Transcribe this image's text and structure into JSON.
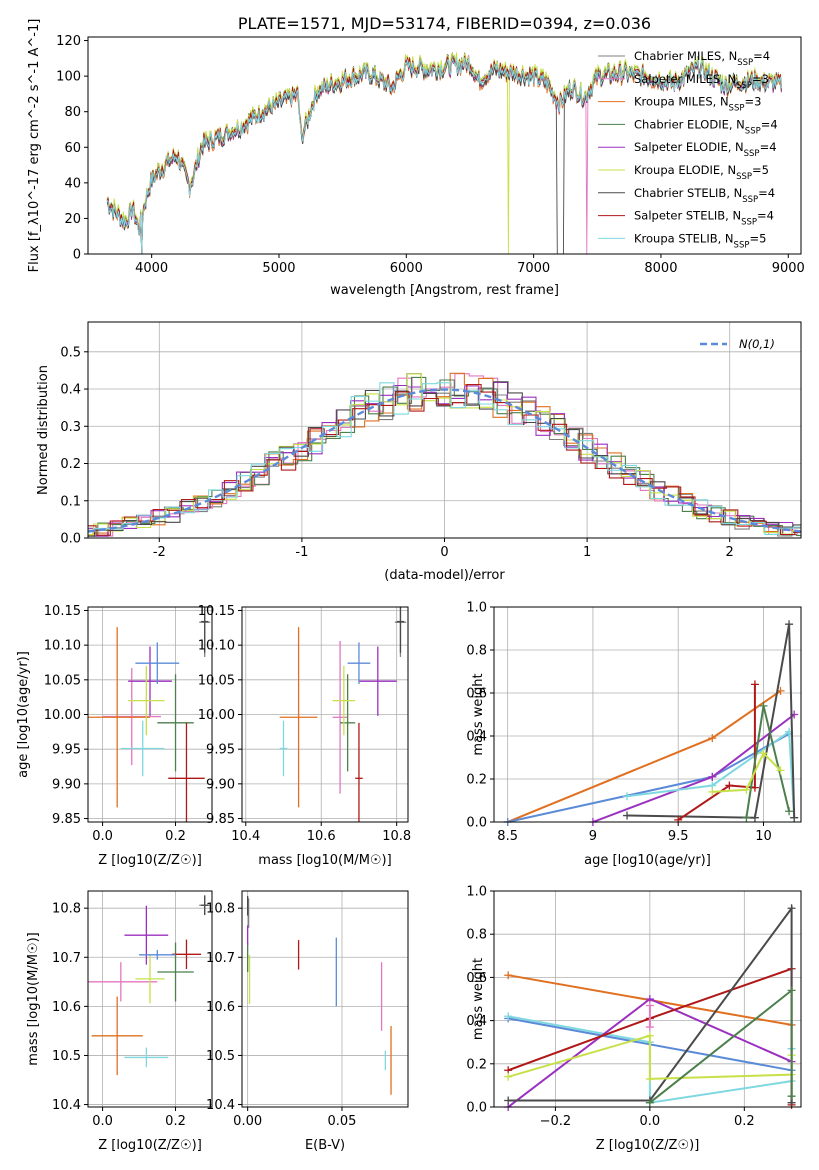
{
  "colors": [
    "#7f7f7f",
    "#e377c2",
    "#e07020",
    "#4c7f4c",
    "#9b30c0",
    "#c8e048",
    "#4a4a4a",
    "#b01818",
    "#7fd8e0"
  ],
  "legend_names": [
    "Chabrier MILES, N_SSP=4",
    "Salpeter MILES, N_SSP=3",
    "Kroupa MILES, N_SSP=3",
    "Chabrier ELODIE, N_SSP=4",
    "Salpeter ELODIE, N_SSP=4",
    "Kroupa ELODIE, N_SSP=5",
    "Chabrier STELIB, N_SSP=4",
    "Salpeter STELIB, N_SSP=4",
    "Kroupa STELIB, N_SSP=5"
  ],
  "chart_data": [
    {
      "type": "line",
      "title": "PLATE=1571, MJD=53174, FIBERID=0394, z=0.036",
      "xlabel": "wavelength [Angstrom, rest frame]",
      "ylabel": "Flux [f_λ10^-17 erg cm^-2 s^-1 A^-1]",
      "xlim": [
        3500,
        9100
      ],
      "ylim": [
        0,
        122
      ],
      "xticks": [
        4000,
        5000,
        6000,
        7000,
        8000,
        9000
      ],
      "yticks": [
        0,
        20,
        40,
        60,
        80,
        100,
        120
      ],
      "spectrum_anchor_points": {
        "x": [
          3650,
          3700,
          3800,
          3850,
          3900,
          3950,
          4000,
          4100,
          4200,
          4300,
          4400,
          4500,
          4700,
          4860,
          5000,
          5150,
          5175,
          5300,
          5500,
          5700,
          5890,
          6000,
          6200,
          6500,
          6563,
          6700,
          7000,
          7100,
          7200,
          7300,
          7400,
          7500,
          7700,
          7900,
          8100,
          8300,
          8500,
          8700,
          8900
        ],
        "y": [
          30,
          25,
          18,
          26,
          14,
          30,
          42,
          50,
          56,
          38,
          62,
          65,
          72,
          80,
          85,
          90,
          65,
          92,
          98,
          102,
          94,
          106,
          104,
          108,
          98,
          104,
          100,
          97,
          85,
          94,
          88,
          100,
          102,
          100,
          96,
          105,
          95,
          98,
          96
        ]
      },
      "dropouts": [
        {
          "x": 3920,
          "series": [
            0,
            1,
            2,
            3,
            4,
            5,
            6,
            7,
            8
          ]
        },
        {
          "x": 6800,
          "series": [
            5
          ]
        },
        {
          "x": 7220,
          "series": [
            6
          ]
        },
        {
          "x": 7420,
          "series": [
            1
          ]
        }
      ],
      "series_offsets": [
        0,
        1,
        -2,
        1.5,
        -1,
        2,
        -1.5,
        0.5,
        -0.5
      ]
    },
    {
      "type": "histogram",
      "xlabel": "(data-model)/error",
      "ylabel": "Normed distribution",
      "xlim": [
        -2.5,
        2.5
      ],
      "ylim": [
        0,
        0.58
      ],
      "xticks": [
        -2,
        -1,
        0,
        1,
        2
      ],
      "yticks": [
        0.0,
        0.1,
        0.2,
        0.3,
        0.4,
        0.5
      ],
      "bin_width": 0.1,
      "reference": {
        "name": "N(0,1)",
        "color": "#5b8bd8",
        "style": "dashed"
      }
    },
    {
      "type": "scatter",
      "xlabel": "Z [log10(Z/Z☉)]",
      "ylabel": "age  [log10(age/yr)]",
      "xlim": [
        -0.04,
        0.3
      ],
      "ylim": [
        9.845,
        10.155
      ],
      "xticks": [
        0.0,
        0.2
      ],
      "xticklabels": [
        "0.0",
        "0.2"
      ],
      "yticks": [
        9.85,
        9.9,
        9.95,
        10.0,
        10.05,
        10.1,
        10.15
      ],
      "points": [
        {
          "series": 0,
          "x": 0.28,
          "y": 10.133,
          "xerr": 0.015,
          "yerr": 0.05
        },
        {
          "series": 1,
          "x": 0.08,
          "y": 9.997,
          "xerr": 0.08,
          "yerr": 0.07
        },
        {
          "series": 2,
          "x": 0.04,
          "y": 9.996,
          "xerr": 0.09,
          "yerr": 0.13
        },
        {
          "series": 3,
          "x": 0.2,
          "y": 9.988,
          "xerr": 0.05,
          "yerr": 0.07
        },
        {
          "series": 4,
          "x": 0.13,
          "y": 10.048,
          "xerr": 0.06,
          "yerr": 0.05
        },
        {
          "series": 5,
          "x": 0.12,
          "y": 10.02,
          "xerr": 0.05,
          "yerr": 0.05
        },
        {
          "series": 6,
          "x": 0.28,
          "y": 10.134,
          "xerr": 0.01,
          "yerr": 0.045
        },
        {
          "series": 7,
          "x": 0.23,
          "y": 9.908,
          "xerr": 0.05,
          "yerr": 0.08
        },
        {
          "series": 8,
          "x": 0.11,
          "y": 9.951,
          "xerr": 0.06,
          "yerr": 0.04
        },
        {
          "series": 9,
          "x": 0.15,
          "y": 10.074,
          "xerr": 0.06,
          "yerr": 0.03
        }
      ]
    },
    {
      "type": "scatter",
      "xlabel": "mass [log10(M/M☉)]",
      "ylabel": "",
      "xlim": [
        10.39,
        10.83
      ],
      "ylim": [
        9.845,
        10.155
      ],
      "xticks": [
        10.4,
        10.6,
        10.8
      ],
      "yticks": [
        9.85,
        9.9,
        9.95,
        10.0,
        10.05,
        10.1,
        10.15
      ],
      "points": [
        {
          "series": 0,
          "x": 10.81,
          "y": 10.133,
          "xerr": 0.015,
          "yerr": 0.05
        },
        {
          "series": 1,
          "x": 10.65,
          "y": 9.996,
          "xerr": 0.02,
          "yerr": 0.11
        },
        {
          "series": 2,
          "x": 10.54,
          "y": 9.996,
          "xerr": 0.05,
          "yerr": 0.13
        },
        {
          "series": 3,
          "x": 10.67,
          "y": 9.988,
          "xerr": 0.02,
          "yerr": 0.07
        },
        {
          "series": 4,
          "x": 10.75,
          "y": 10.048,
          "xerr": 0.05,
          "yerr": 0.05
        },
        {
          "series": 5,
          "x": 10.66,
          "y": 10.02,
          "xerr": 0.03,
          "yerr": 0.05
        },
        {
          "series": 6,
          "x": 10.81,
          "y": 10.134,
          "xerr": 0.01,
          "yerr": 0.045
        },
        {
          "series": 7,
          "x": 10.7,
          "y": 9.908,
          "xerr": 0.01,
          "yerr": 0.08
        },
        {
          "series": 8,
          "x": 10.5,
          "y": 9.951,
          "xerr": 0.01,
          "yerr": 0.04
        },
        {
          "series": 9,
          "x": 10.7,
          "y": 10.074,
          "xerr": 0.03,
          "yerr": 0.03
        }
      ]
    },
    {
      "type": "line",
      "xlabel": "age  [log10(age/yr)]",
      "ylabel": "mass weight",
      "xlim": [
        8.42,
        10.22
      ],
      "ylim": [
        0,
        1
      ],
      "xticks": [
        8.5,
        9.0,
        9.5,
        10.0
      ],
      "yticks": [
        0.0,
        0.2,
        0.4,
        0.6,
        0.8,
        1.0
      ],
      "series": [
        {
          "series": 2,
          "x": [
            8.5,
            9.7,
            10.1
          ],
          "y": [
            0.0,
            0.39,
            0.61
          ]
        },
        {
          "series": 9,
          "x": [
            8.5,
            9.7,
            10.15
          ],
          "y": [
            0.0,
            0.21,
            0.41
          ]
        },
        {
          "series": 4,
          "x": [
            9.0,
            9.7,
            10.18
          ],
          "y": [
            0.0,
            0.21,
            0.5
          ]
        },
        {
          "series": 8,
          "x": [
            9.2,
            9.7,
            10.15,
            10.18
          ],
          "y": [
            0.12,
            0.17,
            0.42,
            0.02
          ]
        },
        {
          "series": 6,
          "x": [
            9.2,
            9.95,
            10.15,
            10.18
          ],
          "y": [
            0.03,
            0.02,
            0.92,
            0.02
          ]
        },
        {
          "series": 7,
          "x": [
            9.5,
            9.8,
            9.95,
            9.95
          ],
          "y": [
            0.01,
            0.17,
            0.16,
            0.64
          ]
        },
        {
          "series": 3,
          "x": [
            9.9,
            10.0,
            10.15
          ],
          "y": [
            0.02,
            0.54,
            0.05
          ]
        },
        {
          "series": 5,
          "x": [
            9.7,
            9.9,
            10.0,
            10.1
          ],
          "y": [
            0.14,
            0.15,
            0.32,
            0.24
          ]
        }
      ]
    },
    {
      "type": "scatter",
      "xlabel": "Z [log10(Z/Z☉)]",
      "ylabel": "mass [log10(M/M☉)]",
      "xlim": [
        -0.04,
        0.3
      ],
      "ylim": [
        10.395,
        10.835
      ],
      "xticks": [
        0.0,
        0.2
      ],
      "xticklabels": [
        "0.0",
        "0.2"
      ],
      "yticks": [
        10.4,
        10.5,
        10.6,
        10.7,
        10.8
      ],
      "points": [
        {
          "series": 0,
          "x": 0.28,
          "y": 10.806,
          "xerr": 0.015,
          "yerr": 0.02
        },
        {
          "series": 1,
          "x": 0.05,
          "y": 10.65,
          "xerr": 0.1,
          "yerr": 0.04
        },
        {
          "series": 2,
          "x": 0.04,
          "y": 10.54,
          "xerr": 0.07,
          "yerr": 0.08
        },
        {
          "series": 3,
          "x": 0.2,
          "y": 10.67,
          "xerr": 0.05,
          "yerr": 0.06
        },
        {
          "series": 4,
          "x": 0.12,
          "y": 10.745,
          "xerr": 0.06,
          "yerr": 0.06
        },
        {
          "series": 5,
          "x": 0.13,
          "y": 10.656,
          "xerr": 0.04,
          "yerr": 0.05
        },
        {
          "series": 6,
          "x": 0.28,
          "y": 10.806,
          "xerr": 0.01,
          "yerr": 0.02
        },
        {
          "series": 7,
          "x": 0.23,
          "y": 10.706,
          "xerr": 0.04,
          "yerr": 0.03
        },
        {
          "series": 8,
          "x": 0.12,
          "y": 10.496,
          "xerr": 0.06,
          "yerr": 0.02
        },
        {
          "series": 9,
          "x": 0.15,
          "y": 10.705,
          "xerr": 0.05,
          "yerr": 0.01
        }
      ]
    },
    {
      "type": "scatter",
      "xlabel": "E(B-V)",
      "ylabel": "",
      "xlim": [
        -0.003,
        0.085
      ],
      "ylim": [
        10.395,
        10.835
      ],
      "xticks": [
        0.0,
        0.05
      ],
      "xticklabels": [
        "0.00",
        "0.05"
      ],
      "yticks": [
        10.4,
        10.5,
        10.6,
        10.7,
        10.8
      ],
      "points": [
        {
          "series": 0,
          "x": 0.0005,
          "y": 10.79,
          "xerr": 0,
          "yerr": 0.03
        },
        {
          "series": 1,
          "x": 0.071,
          "y": 10.62,
          "xerr": 0,
          "yerr": 0.07
        },
        {
          "series": 2,
          "x": 0.076,
          "y": 10.49,
          "xerr": 0,
          "yerr": 0.07
        },
        {
          "series": 3,
          "x": 0.0,
          "y": 10.7,
          "xerr": 0,
          "yerr": 0.03
        },
        {
          "series": 4,
          "x": 0.0,
          "y": 10.745,
          "xerr": 0,
          "yerr": 0.02
        },
        {
          "series": 5,
          "x": 0.001,
          "y": 10.655,
          "xerr": 0,
          "yerr": 0.05
        },
        {
          "series": 6,
          "x": 0.0,
          "y": 10.805,
          "xerr": 0,
          "yerr": 0.02
        },
        {
          "series": 7,
          "x": 0.027,
          "y": 10.705,
          "xerr": 0,
          "yerr": 0.03
        },
        {
          "series": 8,
          "x": 0.073,
          "y": 10.49,
          "xerr": 0,
          "yerr": 0.02
        },
        {
          "series": 9,
          "x": 0.047,
          "y": 10.67,
          "xerr": 0,
          "yerr": 0.07
        }
      ]
    },
    {
      "type": "line",
      "xlabel": "Z [log10(Z/Z☉)]",
      "ylabel": "mass weight",
      "xlim": [
        -0.33,
        0.32
      ],
      "ylim": [
        0,
        1
      ],
      "xticks": [
        -0.2,
        0.0,
        0.2
      ],
      "xticklabels": [
        "−0.2",
        "0.0",
        "0.2"
      ],
      "yticks": [
        0.0,
        0.2,
        0.4,
        0.6,
        0.8,
        1.0
      ],
      "series": [
        {
          "series": 2,
          "x": [
            -0.3,
            0.3
          ],
          "y": [
            0.61,
            0.38
          ]
        },
        {
          "series": 9,
          "x": [
            -0.3,
            0.3
          ],
          "y": [
            0.41,
            0.17
          ]
        },
        {
          "series": 8,
          "x": [
            -0.3,
            0.0,
            0.0,
            0.3,
            0.3
          ],
          "y": [
            0.42,
            0.3,
            0.02,
            0.12,
            0.27
          ]
        },
        {
          "series": 4,
          "x": [
            -0.3,
            0.0,
            0.3
          ],
          "y": [
            0.0,
            0.5,
            0.21
          ]
        },
        {
          "series": 7,
          "x": [
            -0.3,
            0.0,
            0.3,
            0.3
          ],
          "y": [
            0.17,
            0.41,
            0.64,
            0.01
          ]
        },
        {
          "series": 6,
          "x": [
            -0.3,
            0.0,
            0.3,
            0.3
          ],
          "y": [
            0.03,
            0.03,
            0.92,
            0.02
          ]
        },
        {
          "series": 5,
          "x": [
            -0.3,
            0.0,
            0.0,
            0.3,
            0.3
          ],
          "y": [
            0.14,
            0.33,
            0.13,
            0.15,
            0.24
          ]
        },
        {
          "series": 3,
          "x": [
            0.0,
            0.3,
            0.3
          ],
          "y": [
            0.02,
            0.54,
            0.05
          ]
        },
        {
          "series": 1,
          "x": [
            0.0,
            0.0
          ],
          "y": [
            0.37,
            0.47
          ]
        }
      ]
    }
  ]
}
